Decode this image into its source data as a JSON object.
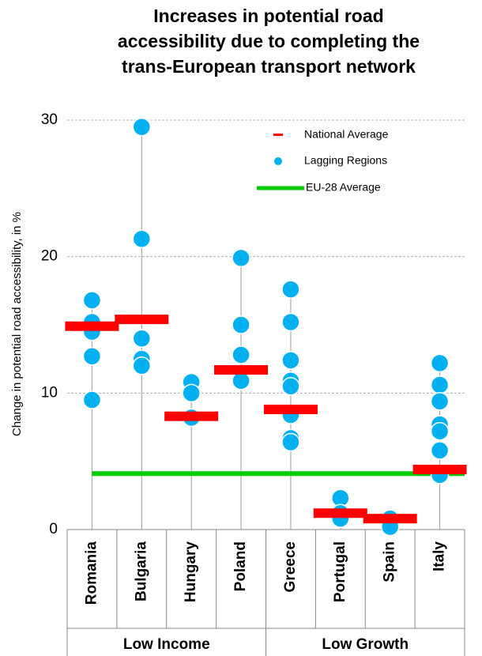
{
  "chart_data": {
    "type": "dot",
    "title": [
      "Increases in potential road",
      "accessibility due to completing the",
      "trans-European transport network"
    ],
    "y_label": "Change in potential road accessibility, in %",
    "ylim": [
      0,
      30
    ],
    "yticks": [
      0,
      10,
      20,
      30
    ],
    "grid": true,
    "groups": [
      {
        "name": "Low Income",
        "categories": [
          "Romania",
          "Bulgaria",
          "Hungary",
          "Poland"
        ]
      },
      {
        "name": "Low Growth",
        "categories": [
          "Greece",
          "Portugal",
          "Spain",
          "Italy"
        ]
      }
    ],
    "series": [
      {
        "name": "National Average",
        "color": "#ff0000",
        "values": [
          14.9,
          15.4,
          8.3,
          11.7,
          8.8,
          1.2,
          0.8,
          4.4
        ]
      },
      {
        "name": "Lagging Regions",
        "color": "#00b0f0",
        "values": [
          [
            16.8,
            15.2,
            14.5,
            12.7,
            9.5
          ],
          [
            29.5,
            21.3,
            14.0,
            12.5,
            12.0
          ],
          [
            10.8,
            10.0,
            8.2
          ],
          [
            19.9,
            15.0,
            12.8,
            10.9
          ],
          [
            17.6,
            15.2,
            12.4,
            10.9,
            10.5,
            8.4,
            6.7,
            6.4
          ],
          [
            2.3,
            1.2,
            0.8
          ],
          [
            0.8,
            0.2
          ],
          [
            12.2,
            10.6,
            9.4,
            7.7,
            7.2,
            5.8,
            4.0
          ]
        ]
      }
    ],
    "reference_line": {
      "name": "EU-28 Average",
      "value": 4.1,
      "color": "#00cc00"
    }
  }
}
